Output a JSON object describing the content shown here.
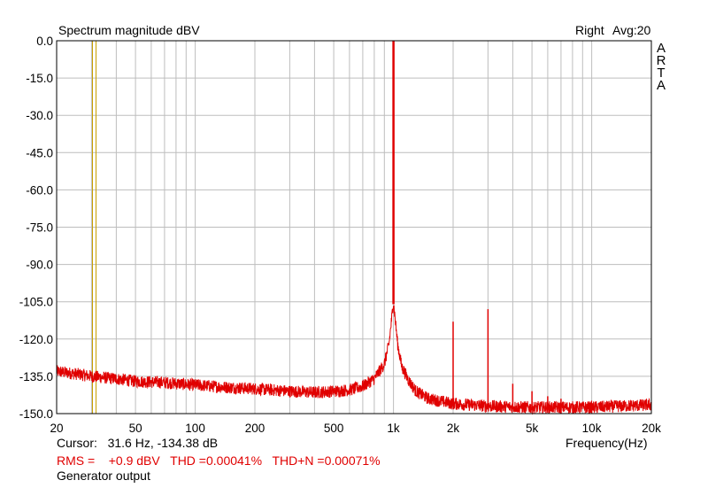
{
  "window": {
    "title": "Spectrum magnitude dBV",
    "channel": "Right",
    "averaging": "Avg:20",
    "brand_letters": [
      "A",
      "R",
      "T",
      "A"
    ]
  },
  "readouts": {
    "cursor": "Cursor:   31.6 Hz, -134.38 dB",
    "stats": "RMS =    +0.9 dBV   THD =0.00041%   THD+N =0.00071%",
    "footer": "Generator output"
  },
  "colors": {
    "trace": "#e00000",
    "cursor": "#c8a000",
    "grid": "#bdbdbd",
    "axis": "#000000"
  },
  "chart_data": {
    "type": "line",
    "title": "Spectrum magnitude dBV",
    "xlabel": "Frequency(Hz)",
    "ylabel": "",
    "xscale": "log",
    "xlim": [
      20,
      20000
    ],
    "ylim": [
      -150,
      0
    ],
    "grid": true,
    "y_ticks": [
      0,
      -15,
      -30,
      -45,
      -60,
      -75,
      -90,
      -105,
      -120,
      -135,
      -150
    ],
    "y_tick_labels": [
      "0.0",
      "-15.0",
      "-30.0",
      "-45.0",
      "-60.0",
      "-75.0",
      "-90.0",
      "-105.0",
      "-120.0",
      "-135.0",
      "-150.0"
    ],
    "x_ticks": [
      20,
      50,
      100,
      200,
      500,
      1000,
      2000,
      5000,
      10000,
      20000
    ],
    "x_tick_labels": [
      "20",
      "50",
      "100",
      "200",
      "500",
      "1k",
      "2k",
      "5k",
      "10k",
      "20k"
    ],
    "cursor": {
      "x": 31.6,
      "y": -134.38
    },
    "series": [
      {
        "noise_floor": [
          [
            20,
            -133
          ],
          [
            25,
            -134
          ],
          [
            30,
            -135
          ],
          [
            40,
            -136
          ],
          [
            50,
            -137
          ],
          [
            70,
            -137.5
          ],
          [
            100,
            -138.5
          ],
          [
            150,
            -139.5
          ],
          [
            200,
            -140
          ],
          [
            300,
            -141
          ],
          [
            400,
            -141.5
          ],
          [
            500,
            -141
          ],
          [
            600,
            -140.5
          ],
          [
            700,
            -139
          ],
          [
            800,
            -136
          ],
          [
            900,
            -130
          ],
          [
            950,
            -122
          ],
          [
            1000,
            -105
          ],
          [
            1050,
            -122
          ],
          [
            1100,
            -131
          ],
          [
            1200,
            -137
          ],
          [
            1300,
            -141
          ],
          [
            1500,
            -144
          ],
          [
            2000,
            -146
          ],
          [
            3000,
            -147
          ],
          [
            5000,
            -147.5
          ],
          [
            10000,
            -147.5
          ],
          [
            20000,
            -146.5
          ]
        ],
        "peaks": [
          {
            "x": 1000,
            "y": 0
          },
          {
            "x": 2000,
            "y": -113
          },
          {
            "x": 3000,
            "y": -108
          },
          {
            "x": 4000,
            "y": -138
          },
          {
            "x": 5000,
            "y": -141
          },
          {
            "x": 6000,
            "y": -143
          },
          {
            "x": 7000,
            "y": -144
          }
        ]
      }
    ]
  }
}
